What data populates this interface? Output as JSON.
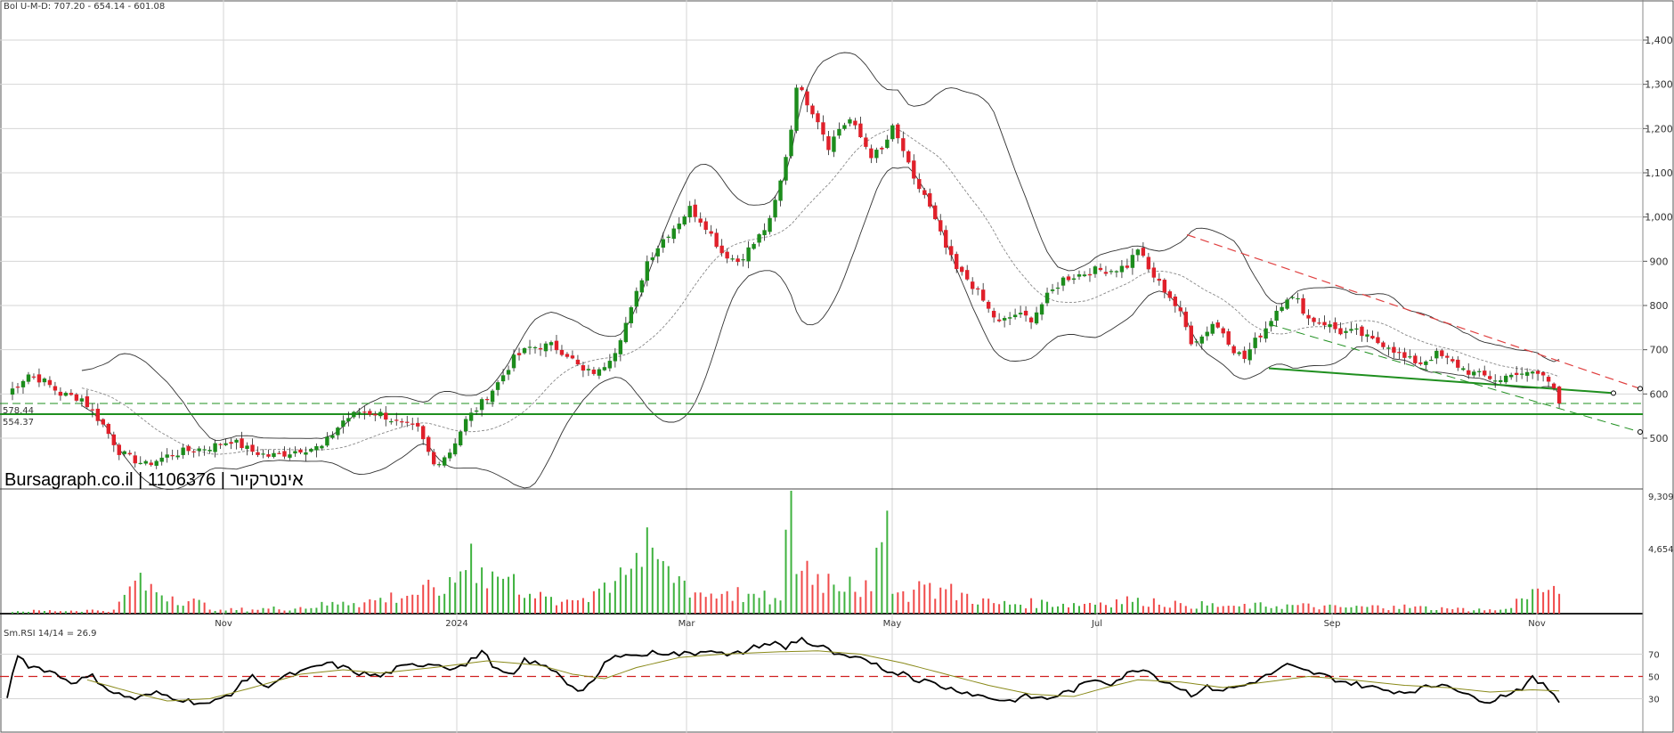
{
  "header": {
    "bollinger_label": "Bol U-M-D: 707.20 - 654.14 - 601.08"
  },
  "brand_label": "Bursagraph.co.il | 1106376 | אינטרקיור",
  "levels": {
    "support_1": "578.44",
    "support_2": "554.37"
  },
  "rsi_label": "Sm.RSI 14/14 = 26.9",
  "colors": {
    "up": "#1c8c1c",
    "down": "#e0202a",
    "rsi": "#000000",
    "rsi_ma": "#8a8a1a",
    "trend_support": "#1f8f1f",
    "trend_resistance": "#e04040"
  },
  "chart_data": {
    "type": "candlestick",
    "price_ticks": [
      "1,400",
      "1,300",
      "1,200",
      "1,100",
      "1,000",
      "900",
      "800",
      "700",
      "600",
      "500"
    ],
    "price_tick_values": [
      1400,
      1300,
      1200,
      1100,
      1000,
      900,
      800,
      700,
      600,
      500
    ],
    "ylim": [
      430,
      1430
    ],
    "volume_ticks": [
      "9,309",
      "4,654"
    ],
    "volume_tick_values": [
      9309,
      4654
    ],
    "rsi_ticks": [
      "70",
      "50",
      "30"
    ],
    "rsi_tick_values": [
      70,
      50,
      30
    ],
    "x_labels": [
      "Nov",
      "2024",
      "Mar",
      "May",
      "Jul",
      "Sep",
      "Nov"
    ],
    "close_anchors": [
      [
        0,
        600
      ],
      [
        4,
        645
      ],
      [
        7,
        628
      ],
      [
        10,
        600
      ],
      [
        14,
        590
      ],
      [
        18,
        530
      ],
      [
        21,
        470
      ],
      [
        23,
        455
      ],
      [
        26,
        440
      ],
      [
        30,
        460
      ],
      [
        33,
        470
      ],
      [
        38,
        480
      ],
      [
        42,
        495
      ],
      [
        46,
        470
      ],
      [
        49,
        460
      ],
      [
        52,
        465
      ],
      [
        55,
        475
      ],
      [
        59,
        480
      ],
      [
        63,
        540
      ],
      [
        66,
        560
      ],
      [
        70,
        555
      ],
      [
        74,
        530
      ],
      [
        77,
        520
      ],
      [
        80,
        440
      ],
      [
        83,
        470
      ],
      [
        86,
        540
      ],
      [
        89,
        580
      ],
      [
        92,
        625
      ],
      [
        95,
        680
      ],
      [
        98,
        705
      ],
      [
        102,
        710
      ],
      [
        105,
        690
      ],
      [
        108,
        650
      ],
      [
        111,
        650
      ],
      [
        114,
        700
      ],
      [
        117,
        790
      ],
      [
        120,
        900
      ],
      [
        123,
        950
      ],
      [
        126,
        990
      ],
      [
        128,
        1020
      ],
      [
        131,
        980
      ],
      [
        134,
        920
      ],
      [
        137,
        900
      ],
      [
        140,
        940
      ],
      [
        143,
        990
      ],
      [
        145,
        1080
      ],
      [
        147,
        1200
      ],
      [
        148,
        1300
      ],
      [
        150,
        1260
      ],
      [
        152,
        1220
      ],
      [
        154,
        1160
      ],
      [
        156,
        1200
      ],
      [
        158,
        1220
      ],
      [
        160,
        1180
      ],
      [
        162,
        1140
      ],
      [
        164,
        1150
      ],
      [
        166,
        1200
      ],
      [
        168,
        1150
      ],
      [
        170,
        1080
      ],
      [
        172,
        1050
      ],
      [
        174,
        990
      ],
      [
        176,
        930
      ],
      [
        178,
        880
      ],
      [
        180,
        860
      ],
      [
        182,
        830
      ],
      [
        184,
        790
      ],
      [
        186,
        760
      ],
      [
        189,
        780
      ],
      [
        192,
        770
      ],
      [
        195,
        820
      ],
      [
        198,
        860
      ],
      [
        201,
        870
      ],
      [
        204,
        880
      ],
      [
        207,
        880
      ],
      [
        210,
        890
      ],
      [
        212,
        930
      ],
      [
        214,
        880
      ],
      [
        216,
        850
      ],
      [
        218,
        820
      ],
      [
        220,
        780
      ],
      [
        222,
        720
      ],
      [
        224,
        730
      ],
      [
        226,
        760
      ],
      [
        228,
        740
      ],
      [
        230,
        700
      ],
      [
        232,
        680
      ],
      [
        234,
        720
      ],
      [
        236,
        750
      ],
      [
        238,
        790
      ],
      [
        240,
        820
      ],
      [
        242,
        810
      ],
      [
        244,
        770
      ],
      [
        247,
        760
      ],
      [
        250,
        740
      ],
      [
        253,
        740
      ],
      [
        256,
        720
      ],
      [
        259,
        710
      ],
      [
        262,
        680
      ],
      [
        265,
        670
      ],
      [
        268,
        690
      ],
      [
        271,
        670
      ],
      [
        274,
        650
      ],
      [
        277,
        640
      ],
      [
        280,
        630
      ],
      [
        282,
        650
      ],
      [
        284,
        640
      ],
      [
        286,
        650
      ],
      [
        288,
        640
      ],
      [
        290,
        620
      ],
      [
        291,
        585
      ]
    ],
    "volume_anchors": [
      [
        0,
        200
      ],
      [
        20,
        300
      ],
      [
        24,
        2500
      ],
      [
        40,
        300
      ],
      [
        55,
        500
      ],
      [
        63,
        900
      ],
      [
        65,
        800
      ],
      [
        70,
        1200
      ],
      [
        80,
        2000
      ],
      [
        82,
        1500
      ],
      [
        85,
        3200
      ],
      [
        87,
        5300
      ],
      [
        89,
        3500
      ],
      [
        92,
        2800
      ],
      [
        95,
        3000
      ],
      [
        98,
        1500
      ],
      [
        104,
        900
      ],
      [
        110,
        1700
      ],
      [
        115,
        3500
      ],
      [
        118,
        4600
      ],
      [
        121,
        5000
      ],
      [
        124,
        3600
      ],
      [
        127,
        2500
      ],
      [
        130,
        1600
      ],
      [
        135,
        1700
      ],
      [
        140,
        1500
      ],
      [
        145,
        1000
      ],
      [
        147,
        9309
      ],
      [
        148,
        3000
      ],
      [
        150,
        4000
      ],
      [
        152,
        3000
      ],
      [
        158,
        2800
      ],
      [
        162,
        1700
      ],
      [
        165,
        7800
      ],
      [
        166,
        1500
      ],
      [
        172,
        2200
      ],
      [
        180,
        1500
      ],
      [
        185,
        800
      ],
      [
        195,
        900
      ],
      [
        200,
        800
      ],
      [
        212,
        1200
      ],
      [
        220,
        800
      ],
      [
        230,
        600
      ],
      [
        240,
        700
      ],
      [
        250,
        500
      ],
      [
        260,
        600
      ],
      [
        270,
        400
      ],
      [
        280,
        300
      ],
      [
        287,
        1900
      ],
      [
        289,
        1800
      ],
      [
        291,
        1500
      ]
    ],
    "volume_max": 9309,
    "rsi_anchors": [
      [
        0,
        32
      ],
      [
        2,
        70
      ],
      [
        4,
        60
      ],
      [
        8,
        55
      ],
      [
        12,
        45
      ],
      [
        16,
        50
      ],
      [
        20,
        35
      ],
      [
        24,
        30
      ],
      [
        28,
        35
      ],
      [
        34,
        28
      ],
      [
        38,
        25
      ],
      [
        42,
        35
      ],
      [
        46,
        52
      ],
      [
        48,
        40
      ],
      [
        52,
        50
      ],
      [
        56,
        55
      ],
      [
        60,
        62
      ],
      [
        63,
        58
      ],
      [
        66,
        53
      ],
      [
        70,
        50
      ],
      [
        73,
        57
      ],
      [
        76,
        60
      ],
      [
        80,
        62
      ],
      [
        83,
        58
      ],
      [
        86,
        60
      ],
      [
        89,
        73
      ],
      [
        92,
        55
      ],
      [
        95,
        50
      ],
      [
        97,
        65
      ],
      [
        100,
        60
      ],
      [
        103,
        55
      ],
      [
        106,
        40
      ],
      [
        108,
        37
      ],
      [
        110,
        45
      ],
      [
        112,
        62
      ],
      [
        116,
        72
      ],
      [
        118,
        68
      ],
      [
        122,
        72
      ],
      [
        126,
        70
      ],
      [
        129,
        71
      ],
      [
        132,
        75
      ],
      [
        135,
        68
      ],
      [
        138,
        72
      ],
      [
        141,
        78
      ],
      [
        144,
        80
      ],
      [
        146,
        75
      ],
      [
        147,
        80
      ],
      [
        149,
        84
      ],
      [
        151,
        78
      ],
      [
        153,
        76
      ],
      [
        156,
        68
      ],
      [
        160,
        65
      ],
      [
        163,
        62
      ],
      [
        166,
        52
      ],
      [
        168,
        55
      ],
      [
        170,
        48
      ],
      [
        173,
        45
      ],
      [
        176,
        40
      ],
      [
        179,
        37
      ],
      [
        182,
        33
      ],
      [
        185,
        30
      ],
      [
        188,
        28
      ],
      [
        191,
        32
      ],
      [
        195,
        30
      ],
      [
        200,
        38
      ],
      [
        204,
        48
      ],
      [
        207,
        44
      ],
      [
        210,
        52
      ],
      [
        213,
        58
      ],
      [
        216,
        48
      ],
      [
        219,
        42
      ],
      [
        222,
        34
      ],
      [
        225,
        40
      ],
      [
        228,
        38
      ],
      [
        232,
        42
      ],
      [
        236,
        50
      ],
      [
        240,
        60
      ],
      [
        243,
        55
      ],
      [
        246,
        52
      ],
      [
        250,
        46
      ],
      [
        254,
        42
      ],
      [
        258,
        38
      ],
      [
        262,
        36
      ],
      [
        266,
        40
      ],
      [
        270,
        44
      ],
      [
        274,
        32
      ],
      [
        278,
        28
      ],
      [
        281,
        34
      ],
      [
        284,
        40
      ],
      [
        286,
        48
      ],
      [
        288,
        42
      ],
      [
        290,
        35
      ],
      [
        291,
        27
      ]
    ],
    "rsi_ma_anchors": [
      [
        15,
        47
      ],
      [
        24,
        35
      ],
      [
        30,
        28
      ],
      [
        38,
        30
      ],
      [
        46,
        40
      ],
      [
        55,
        52
      ],
      [
        63,
        56
      ],
      [
        70,
        53
      ],
      [
        80,
        58
      ],
      [
        90,
        64
      ],
      [
        100,
        60
      ],
      [
        106,
        52
      ],
      [
        112,
        48
      ],
      [
        118,
        58
      ],
      [
        126,
        67
      ],
      [
        134,
        70
      ],
      [
        144,
        72
      ],
      [
        152,
        73
      ],
      [
        160,
        70
      ],
      [
        168,
        62
      ],
      [
        176,
        52
      ],
      [
        184,
        42
      ],
      [
        192,
        34
      ],
      [
        200,
        32
      ],
      [
        206,
        40
      ],
      [
        212,
        47
      ],
      [
        220,
        45
      ],
      [
        228,
        40
      ],
      [
        236,
        45
      ],
      [
        244,
        50
      ],
      [
        252,
        47
      ],
      [
        262,
        42
      ],
      [
        270,
        40
      ],
      [
        278,
        36
      ],
      [
        286,
        38
      ],
      [
        291,
        37
      ]
    ]
  }
}
